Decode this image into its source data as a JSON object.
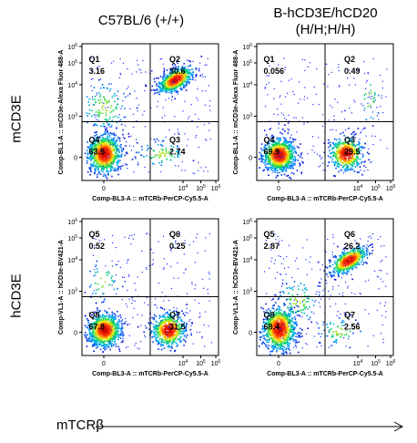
{
  "columns": [
    "C57BL/6 (+/+)",
    "B-hCD3E/hCD20\n(H/H;H/H)"
  ],
  "rows": [
    "mCD3E",
    "hCD3E"
  ],
  "x_axis_label": "mTCRβ",
  "chart_data": [
    {
      "type": "scatter",
      "panel": "row1-col1",
      "xlabel": "Comp-BL3-A :: mTCRb-PerCP-Cy5.5-A",
      "ylabel": "Comp-BL1-A :: mCD3e-Alexa Fluor 488-A",
      "x_scale": "log",
      "y_scale": "log",
      "x_ticks": [
        "0",
        "10^4",
        "10^5",
        "10^6"
      ],
      "y_ticks": [
        "0",
        "10^3",
        "10^4",
        "10^5",
        "10^6"
      ],
      "quadrants": [
        {
          "id": "Q1",
          "value": "3.16"
        },
        {
          "id": "Q2",
          "value": "30.6"
        },
        {
          "id": "Q3",
          "value": "2.74"
        },
        {
          "id": "Q4",
          "value": "63.5"
        }
      ]
    },
    {
      "type": "scatter",
      "panel": "row1-col2",
      "xlabel": "Comp-BL3-A :: mTCRb-PerCP-Cy5.5-A",
      "ylabel": "Comp-BL1-A :: mCD3e-Alexa Fluor 488-A",
      "x_scale": "log",
      "y_scale": "log",
      "x_ticks": [
        "0",
        "10^4",
        "10^5",
        "10^6"
      ],
      "y_ticks": [
        "0",
        "10^3",
        "10^4",
        "10^5",
        "10^6"
      ],
      "quadrants": [
        {
          "id": "Q1",
          "value": "0.056"
        },
        {
          "id": "Q2",
          "value": "0.49"
        },
        {
          "id": "Q3",
          "value": "29.5"
        },
        {
          "id": "Q4",
          "value": "69.9"
        }
      ]
    },
    {
      "type": "scatter",
      "panel": "row2-col1",
      "xlabel": "Comp-BL3-A :: mTCRb-PerCP-Cy5.5-A",
      "ylabel": "Comp-VL1-A :: hCD3e-BV421-A",
      "x_scale": "log",
      "y_scale": "log",
      "x_ticks": [
        "0",
        "10^4",
        "10^5",
        "10^6"
      ],
      "y_ticks": [
        "0",
        "10^3",
        "10^4",
        "10^5",
        "10^6"
      ],
      "quadrants": [
        {
          "id": "Q5",
          "value": "0.52"
        },
        {
          "id": "Q6",
          "value": "0.25"
        },
        {
          "id": "Q7",
          "value": "31.5"
        },
        {
          "id": "Q8",
          "value": "67.8"
        }
      ]
    },
    {
      "type": "scatter",
      "panel": "row2-col2",
      "xlabel": "Comp-BL3-A :: mTCRb-PerCP-Cy5.5-A",
      "ylabel": "Comp-VL1-A :: hCD3e-BV421-A",
      "x_scale": "log",
      "y_scale": "log",
      "x_ticks": [
        "0",
        "10^4",
        "10^5",
        "10^6"
      ],
      "y_ticks": [
        "0",
        "10^3",
        "10^4",
        "10^5",
        "10^6"
      ],
      "quadrants": [
        {
          "id": "Q5",
          "value": "2.87"
        },
        {
          "id": "Q6",
          "value": "26.2"
        },
        {
          "id": "Q7",
          "value": "2.56"
        },
        {
          "id": "Q8",
          "value": "68.4"
        }
      ]
    }
  ]
}
